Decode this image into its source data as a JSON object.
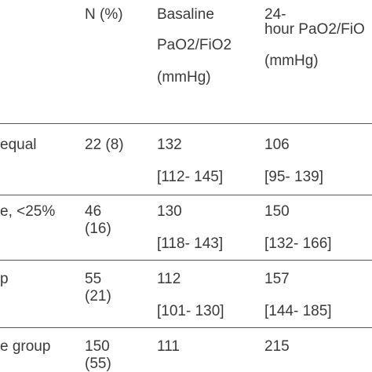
{
  "header": {
    "n_pct": "N (%)",
    "baseline_line1": "Basaline",
    "baseline_line2": "PaO2/FiO2",
    "baseline_line3": "(mmHg)",
    "h24_line1": "24-",
    "h24_line2": "hour PaO2/FiO",
    "h24_line3": "(mmHg)"
  },
  "rows": [
    {
      "label": "equal",
      "n_line1": "22 (8)",
      "n_line2": "",
      "baseline_median": "132",
      "baseline_iqr": "[112- 145]",
      "h24_median": "106",
      "h24_iqr": "[95- 139]"
    },
    {
      "label": "e, <25%",
      "n_line1": "46",
      "n_line2": "(16)",
      "baseline_median": "130",
      "baseline_iqr": "[118- 143]",
      "h24_median": "150",
      "h24_iqr": "[132- 166]"
    },
    {
      "label": "p",
      "n_line1": "55",
      "n_line2": "(21)",
      "baseline_median": "112",
      "baseline_iqr": "[101- 130]",
      "h24_median": "157",
      "h24_iqr": "[144- 185]"
    },
    {
      "label": "e group",
      "n_line1": "150",
      "n_line2": "(55)",
      "baseline_median": "111",
      "baseline_iqr": "",
      "h24_median": "215",
      "h24_iqr": ""
    }
  ]
}
